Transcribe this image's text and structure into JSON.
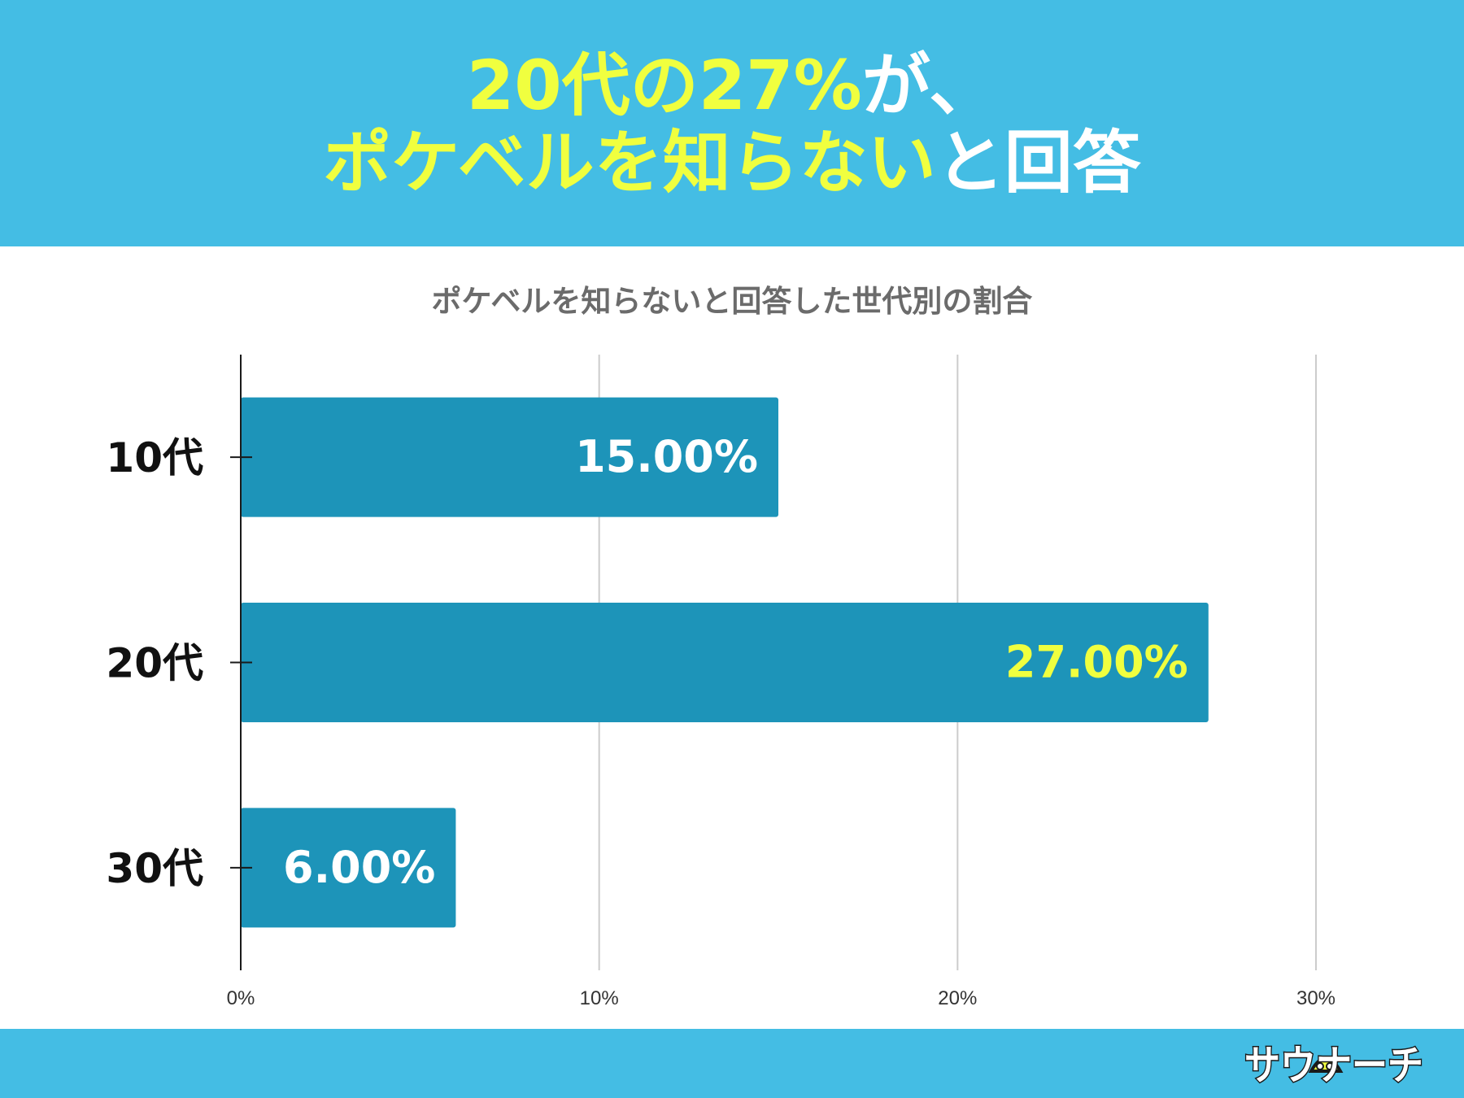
{
  "headline": {
    "line1_highlight": "20代の27%",
    "line1_rest": "が、",
    "line2_highlight": "ポケベルを知らない",
    "line2_rest": "と回答"
  },
  "colors": {
    "header_bg": "#44bde4",
    "highlight_yellow": "#f0ff3f",
    "bar": "#1d94b9",
    "label_white": "#ffffff",
    "label_yellow": "#f0ff3f"
  },
  "chart_data": {
    "type": "bar",
    "orientation": "horizontal",
    "title": "ポケベルを知らないと回答した世代別の割合",
    "categories": [
      "10代",
      "20代",
      "30代"
    ],
    "values": [
      15,
      27,
      6
    ],
    "data_labels": [
      "15.00%",
      "27.00%",
      "6.00%"
    ],
    "label_colors": [
      "#ffffff",
      "#f0ff3f",
      "#ffffff"
    ],
    "xlim": [
      0,
      30
    ],
    "x_ticks": [
      0,
      10,
      20,
      30
    ],
    "x_tick_labels": [
      "0%",
      "10%",
      "20%",
      "30%"
    ],
    "grid": true,
    "legend": "none"
  },
  "logo": {
    "text": "サウナーチ",
    "icon": "sauna-hat-icon"
  }
}
